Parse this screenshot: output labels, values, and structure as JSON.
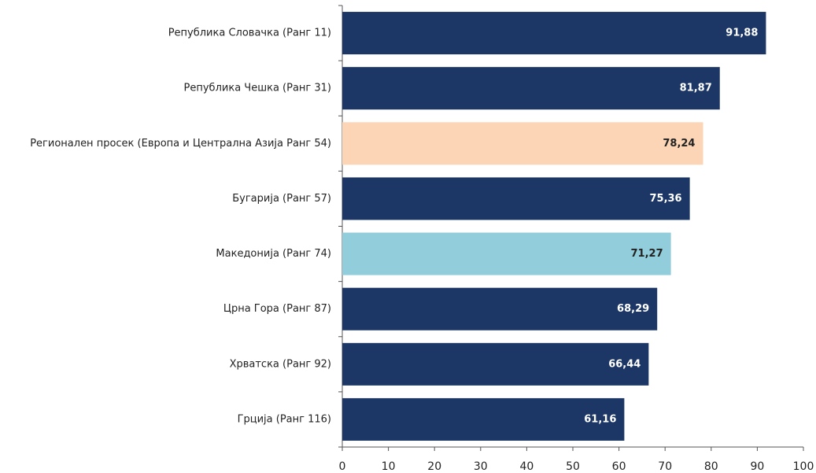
{
  "chart_data": {
    "type": "barh",
    "categories": [
      "Република Словачка (Ранг 11)",
      "Република Чешка (Ранг 31)",
      "Регионален просек (Европа и Централна Азија Ранг 54)",
      "Бугарија (Ранг 57)",
      "Македонија (Ранг 74)",
      "Црна Гора (Ранг 87)",
      "Хрватска (Ранг 92)",
      "Грција (Ранг 116)"
    ],
    "values": [
      91.88,
      81.87,
      78.24,
      75.36,
      71.27,
      68.29,
      66.44,
      61.16
    ],
    "value_labels": [
      "91,88",
      "81,87",
      "78,24",
      "75,36",
      "71,27",
      "68,29",
      "66,44",
      "61,16"
    ],
    "colors": [
      "#1c3765",
      "#1c3765",
      "#fbd5b5",
      "#1c3765",
      "#92cddc",
      "#1c3765",
      "#1c3765",
      "#1c3765"
    ],
    "label_colors": [
      "#ffffff",
      "#ffffff",
      "#222222",
      "#ffffff",
      "#222222",
      "#ffffff",
      "#ffffff",
      "#ffffff"
    ],
    "xlim": [
      0,
      100
    ],
    "xticks": [
      0,
      10,
      20,
      30,
      40,
      50,
      60,
      70,
      80,
      90,
      100
    ]
  }
}
